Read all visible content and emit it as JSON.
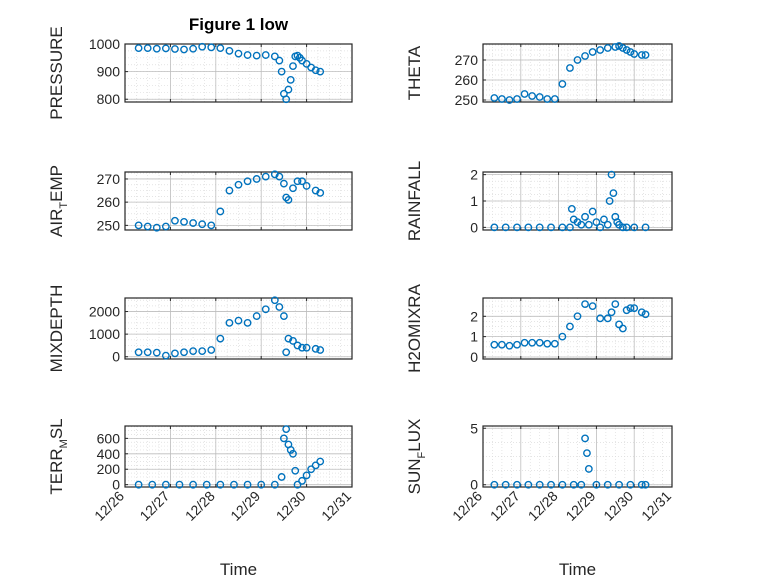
{
  "figure": {
    "title": "Figure 1 low",
    "xlabel": "Time",
    "x_tick_labels": [
      "12/26",
      "12/27",
      "12/28",
      "12/29",
      "12/30",
      "12/31"
    ]
  },
  "chart_data": [
    {
      "type": "scatter",
      "title": "Figure 1 low",
      "ylabel_parts": [
        "PRESSURE"
      ],
      "xlabel": "",
      "ylim": [
        790,
        1000
      ],
      "yticks": [
        800,
        900,
        1000
      ],
      "x": [
        26.3,
        26.5,
        26.7,
        26.9,
        27.1,
        27.3,
        27.5,
        27.7,
        27.9,
        28.1,
        28.3,
        28.5,
        28.7,
        28.9,
        29.1,
        29.3,
        29.4,
        29.45,
        29.5,
        29.55,
        29.6,
        29.65,
        29.7,
        29.75,
        29.8,
        29.85,
        29.9,
        30.0,
        30.1,
        30.2,
        30.3
      ],
      "y": [
        985,
        985,
        983,
        984,
        982,
        980,
        983,
        990,
        988,
        985,
        975,
        965,
        960,
        958,
        960,
        955,
        940,
        900,
        820,
        800,
        835,
        870,
        920,
        955,
        958,
        950,
        940,
        928,
        915,
        905,
        900
      ]
    },
    {
      "type": "scatter",
      "ylabel_parts": [
        "THETA"
      ],
      "ylim": [
        249,
        278
      ],
      "yticks": [
        250,
        260,
        270
      ],
      "x": [
        26.3,
        26.5,
        26.7,
        26.9,
        27.1,
        27.3,
        27.5,
        27.7,
        27.9,
        28.1,
        28.3,
        28.5,
        28.7,
        28.9,
        29.1,
        29.3,
        29.5,
        29.6,
        29.7,
        29.8,
        29.9,
        30.0,
        30.2,
        30.3
      ],
      "y": [
        251,
        250.5,
        250,
        250.5,
        253,
        252,
        251.5,
        250.5,
        250.5,
        258,
        266,
        270,
        272,
        274,
        275,
        276,
        276.5,
        277,
        276,
        275,
        274,
        273,
        272.5,
        272.5
      ]
    },
    {
      "type": "scatter",
      "ylabel_parts": [
        "AIR",
        "T",
        "EMP"
      ],
      "ylim": [
        248,
        273
      ],
      "yticks": [
        250,
        260,
        270
      ],
      "x": [
        26.3,
        26.5,
        26.7,
        26.9,
        27.1,
        27.3,
        27.5,
        27.7,
        27.9,
        28.1,
        28.3,
        28.5,
        28.7,
        28.9,
        29.1,
        29.3,
        29.4,
        29.5,
        29.55,
        29.6,
        29.7,
        29.8,
        29.9,
        30.0,
        30.2,
        30.3
      ],
      "y": [
        250,
        249.5,
        249,
        249.5,
        252,
        251.5,
        251,
        250.5,
        250,
        256,
        265,
        267.5,
        269,
        270,
        271,
        272,
        271,
        268,
        262,
        261,
        266,
        269,
        269,
        267,
        265,
        264
      ]
    },
    {
      "type": "scatter",
      "ylabel_parts": [
        "RAINFALL"
      ],
      "ylim": [
        -0.1,
        2.1
      ],
      "yticks": [
        0,
        1,
        2
      ],
      "x": [
        26.3,
        26.6,
        26.9,
        27.2,
        27.5,
        27.8,
        28.1,
        28.3,
        28.35,
        28.4,
        28.5,
        28.6,
        28.7,
        28.8,
        28.9,
        29.0,
        29.1,
        29.2,
        29.3,
        29.35,
        29.4,
        29.45,
        29.5,
        29.55,
        29.6,
        29.7,
        29.8,
        30.0,
        30.3
      ],
      "y": [
        0,
        0,
        0,
        0,
        0,
        0,
        0,
        0,
        0.7,
        0.3,
        0.2,
        0.1,
        0.4,
        0.1,
        0.6,
        0.2,
        0,
        0.3,
        0.1,
        1.0,
        2.0,
        1.3,
        0.4,
        0.2,
        0.1,
        0,
        0,
        0,
        0
      ]
    },
    {
      "type": "scatter",
      "ylabel_parts": [
        "MIXDEPTH"
      ],
      "ylim": [
        -100,
        2600
      ],
      "yticks": [
        0,
        1000,
        2000
      ],
      "x": [
        26.3,
        26.5,
        26.7,
        26.9,
        27.1,
        27.3,
        27.5,
        27.7,
        27.9,
        28.1,
        28.3,
        28.5,
        28.7,
        28.9,
        29.1,
        29.3,
        29.4,
        29.5,
        29.55,
        29.6,
        29.7,
        29.8,
        29.9,
        30.0,
        30.2,
        30.3
      ],
      "y": [
        200,
        200,
        180,
        50,
        150,
        200,
        250,
        250,
        300,
        800,
        1500,
        1600,
        1500,
        1800,
        2100,
        2500,
        2200,
        1800,
        200,
        800,
        700,
        500,
        400,
        400,
        350,
        300
      ]
    },
    {
      "type": "scatter",
      "ylabel_parts": [
        "H2OMIXRA"
      ],
      "ylim": [
        -0.1,
        2.9
      ],
      "yticks": [
        0,
        1,
        2
      ],
      "x": [
        26.3,
        26.5,
        26.7,
        26.9,
        27.1,
        27.3,
        27.5,
        27.7,
        27.9,
        28.1,
        28.3,
        28.5,
        28.7,
        28.9,
        29.1,
        29.3,
        29.4,
        29.5,
        29.6,
        29.7,
        29.8,
        29.9,
        30.0,
        30.2,
        30.3
      ],
      "y": [
        0.6,
        0.6,
        0.55,
        0.6,
        0.7,
        0.7,
        0.7,
        0.65,
        0.65,
        1.0,
        1.5,
        2.0,
        2.6,
        2.5,
        1.9,
        1.9,
        2.2,
        2.6,
        1.6,
        1.4,
        2.3,
        2.4,
        2.4,
        2.2,
        2.1
      ]
    },
    {
      "type": "scatter",
      "ylabel_parts": [
        "TERR",
        "M",
        "SL"
      ],
      "ylim": [
        -30,
        760
      ],
      "yticks": [
        0,
        200,
        400,
        600
      ],
      "x": [
        26.3,
        26.6,
        26.9,
        27.2,
        27.5,
        27.8,
        28.1,
        28.4,
        28.7,
        29.0,
        29.3,
        29.45,
        29.5,
        29.55,
        29.6,
        29.65,
        29.7,
        29.75,
        29.8,
        29.9,
        30.0,
        30.1,
        30.2,
        30.3
      ],
      "y": [
        0,
        0,
        0,
        0,
        0,
        0,
        0,
        0,
        0,
        0,
        0,
        100,
        600,
        720,
        520,
        450,
        400,
        180,
        0,
        50,
        120,
        200,
        250,
        300
      ]
    },
    {
      "type": "scatter",
      "ylabel_parts": [
        "SUN",
        "F",
        "LUX"
      ],
      "ylim": [
        -0.2,
        5.2
      ],
      "yticks": [
        0,
        5
      ],
      "x": [
        26.3,
        26.6,
        26.9,
        27.2,
        27.5,
        27.8,
        28.1,
        28.4,
        28.6,
        28.7,
        28.75,
        28.8,
        29.0,
        29.3,
        29.6,
        29.9,
        30.2,
        30.3
      ],
      "y": [
        0,
        0,
        0,
        0,
        0,
        0,
        0,
        0,
        0,
        4.1,
        2.8,
        1.4,
        0,
        0,
        0,
        0,
        0,
        0
      ]
    }
  ],
  "colors": {
    "marker": "#0072BD",
    "axis": "#262626",
    "grid": "#bdbdbd"
  }
}
